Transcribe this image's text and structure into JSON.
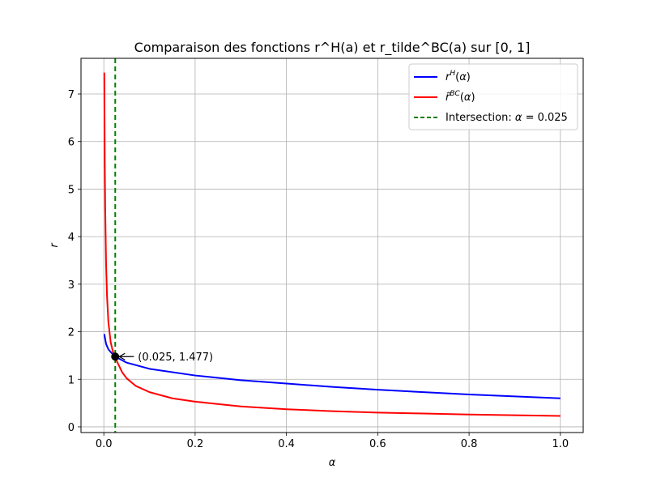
{
  "chart_data": {
    "type": "line",
    "title": "Comparaison des fonctions r^H(a) et r_tilde^BC(a) sur [0, 1]",
    "xlabel": "α",
    "ylabel": "r",
    "xlim": [
      -0.05,
      1.05
    ],
    "ylim": [
      -0.12,
      7.75
    ],
    "xticks": [
      "0.0",
      "0.2",
      "0.4",
      "0.6",
      "0.8",
      "1.0"
    ],
    "yticks": [
      "0",
      "1",
      "2",
      "3",
      "4",
      "5",
      "6",
      "7"
    ],
    "grid": true,
    "legend_position": "upper right",
    "series": [
      {
        "name": "r^H(α)",
        "color": "#0000ff",
        "x": [
          0.001,
          0.005,
          0.01,
          0.02,
          0.025,
          0.05,
          0.1,
          0.2,
          0.3,
          0.4,
          0.5,
          0.6,
          0.7,
          0.8,
          0.9,
          1.0
        ],
        "y": [
          1.95,
          1.74,
          1.63,
          1.52,
          1.477,
          1.35,
          1.22,
          1.08,
          0.98,
          0.91,
          0.84,
          0.78,
          0.73,
          0.68,
          0.64,
          0.6
        ]
      },
      {
        "name": "r̃^BC(α)",
        "color": "#ff0000",
        "x": [
          0.001,
          0.002,
          0.003,
          0.005,
          0.007,
          0.01,
          0.015,
          0.02,
          0.025,
          0.03,
          0.04,
          0.05,
          0.07,
          0.1,
          0.15,
          0.2,
          0.3,
          0.4,
          0.5,
          0.6,
          0.7,
          0.8,
          0.9,
          1.0
        ],
        "y": [
          7.45,
          5.6,
          4.6,
          3.4,
          2.75,
          2.2,
          1.78,
          1.58,
          1.477,
          1.35,
          1.15,
          1.02,
          0.86,
          0.73,
          0.6,
          0.53,
          0.43,
          0.37,
          0.33,
          0.3,
          0.28,
          0.26,
          0.245,
          0.23
        ]
      }
    ],
    "vline": {
      "name": "Intersection: α = 0.025",
      "x": 0.025,
      "color": "#008000",
      "style": "dashed"
    },
    "marker": {
      "x": 0.025,
      "y": 1.477,
      "label": "(0.025, 1.477)"
    }
  }
}
